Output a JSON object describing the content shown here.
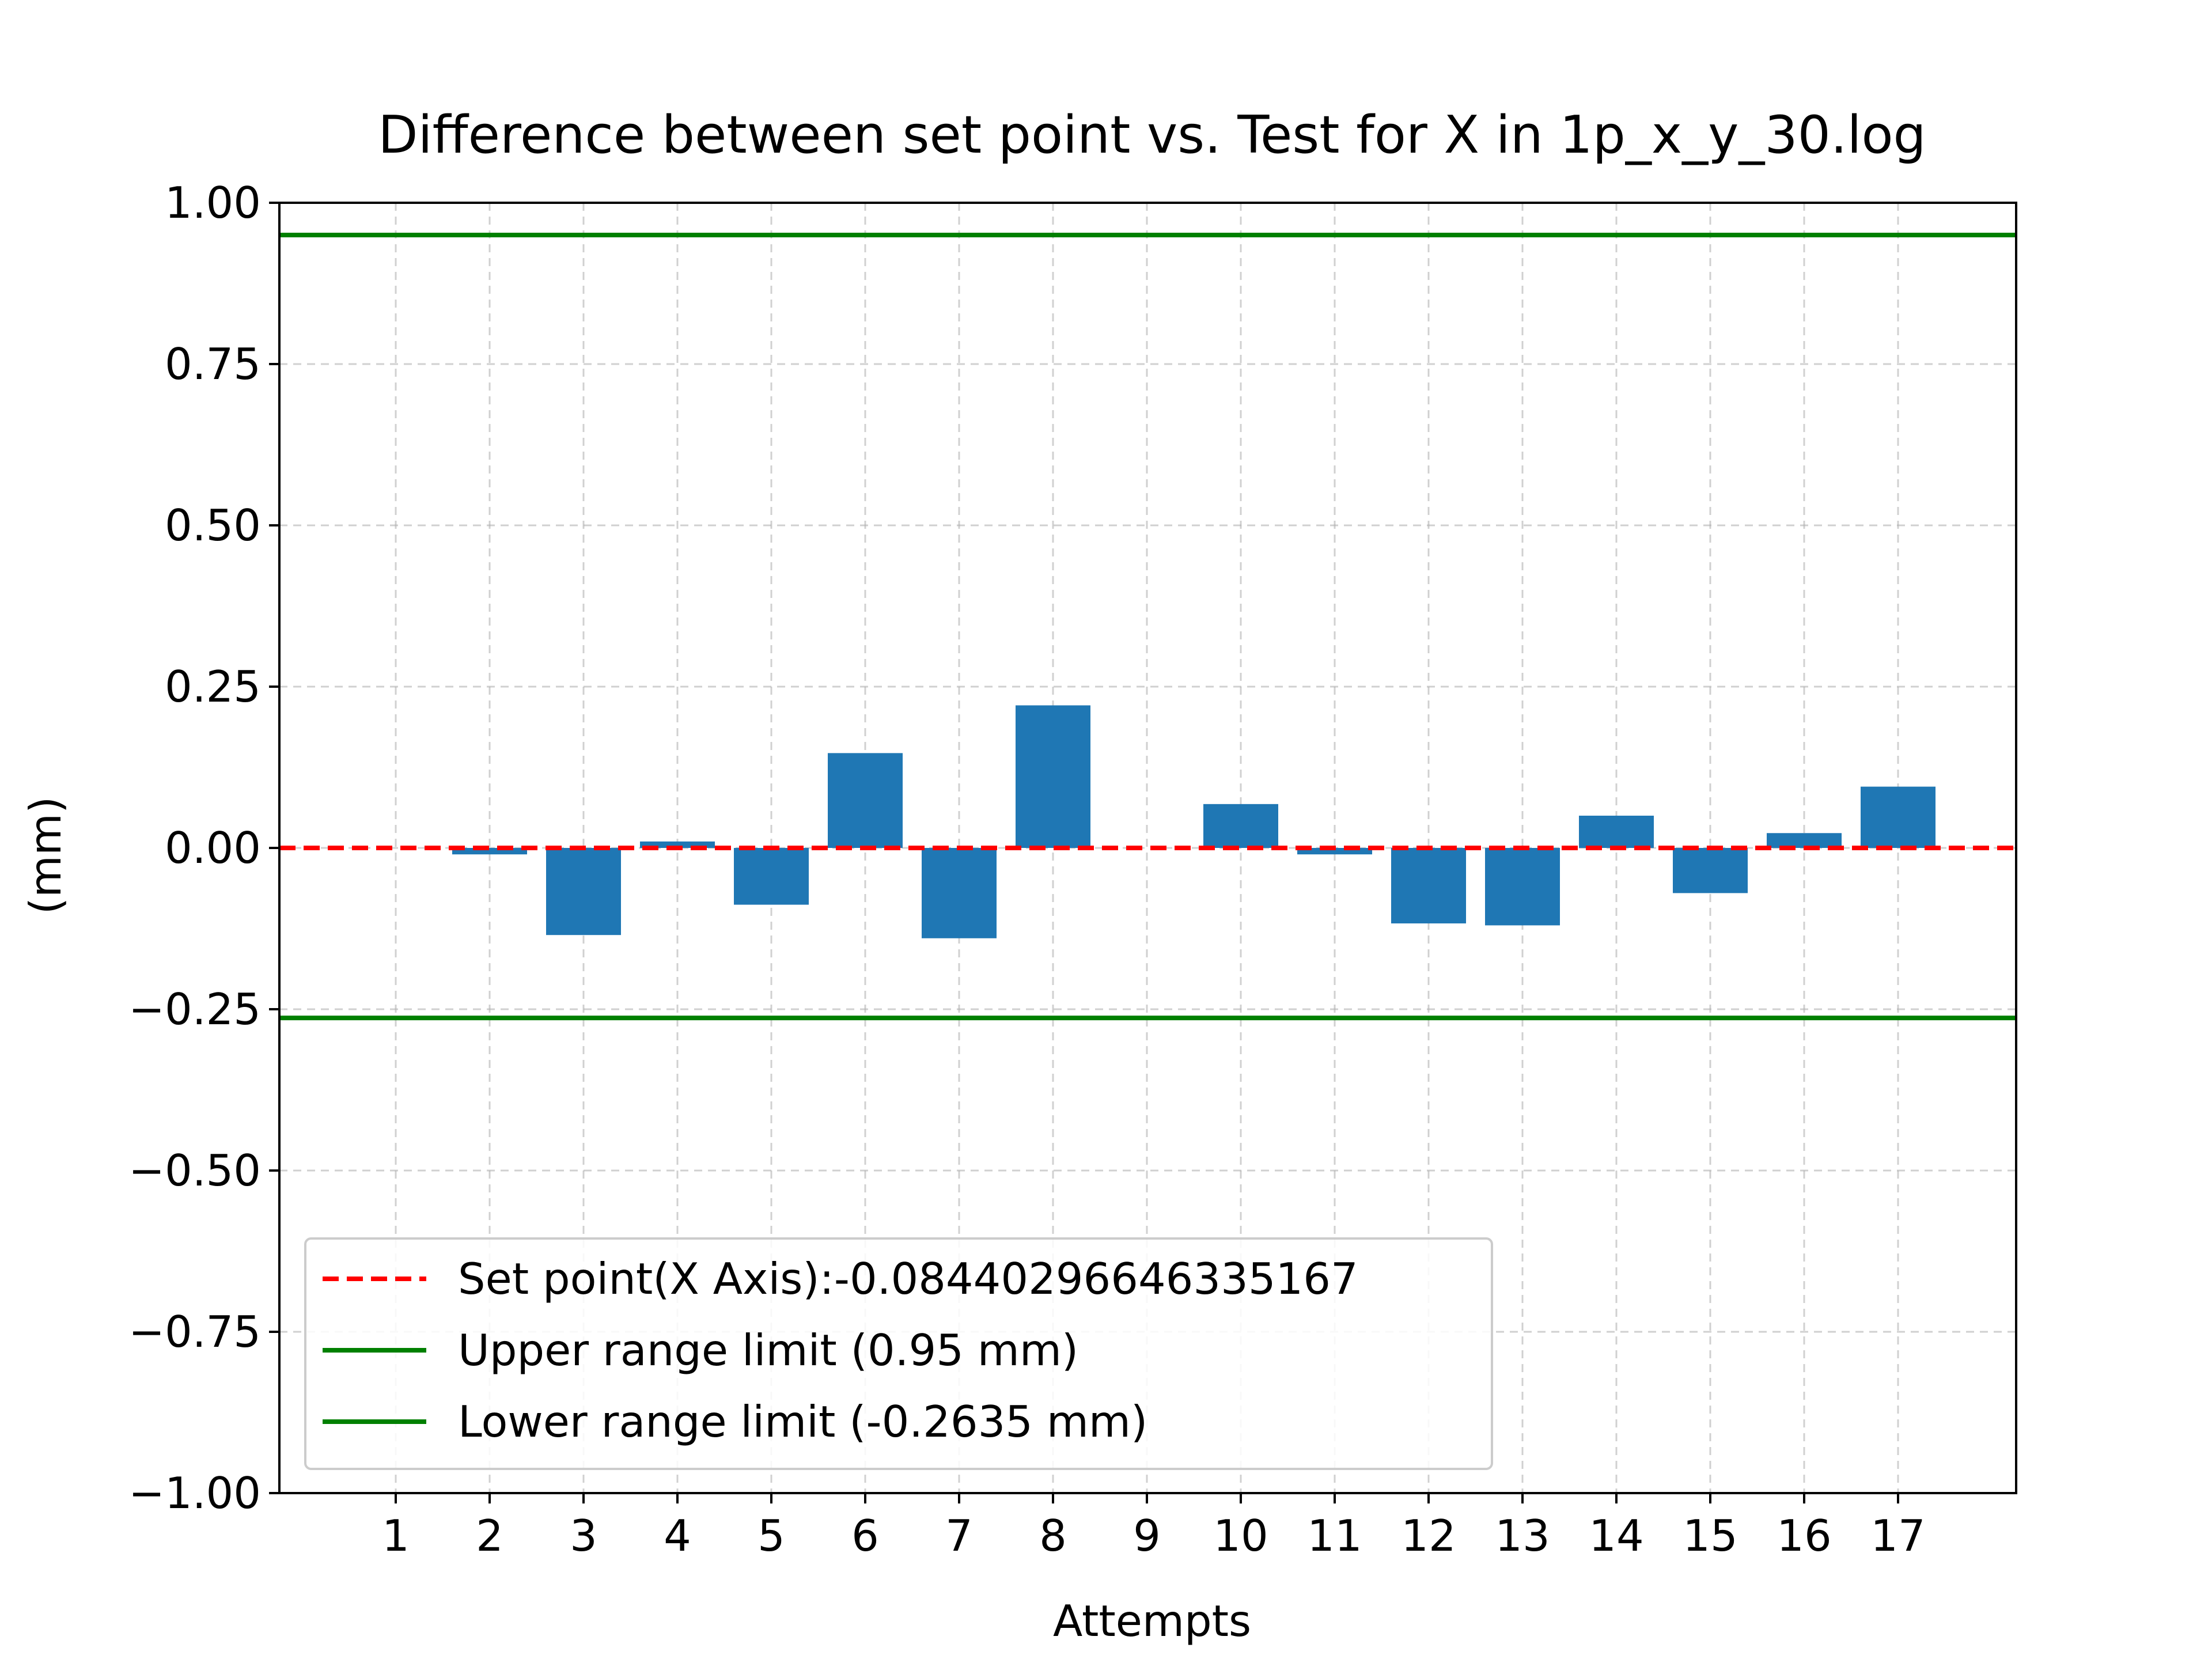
{
  "chart_data": {
    "type": "bar",
    "title": "Difference between set point vs. Test for X in 1p_x_y_30.log",
    "xlabel": "Attempts",
    "ylabel": "(mm)",
    "ylim": [
      -1.0,
      1.0
    ],
    "yticks": [
      "1.00",
      "0.75",
      "0.50",
      "0.25",
      "0.00",
      "−0.25",
      "−0.50",
      "−0.75",
      "−1.00"
    ],
    "ytick_values": [
      1.0,
      0.75,
      0.5,
      0.25,
      0.0,
      -0.25,
      -0.5,
      -0.75,
      -1.0
    ],
    "grid": true,
    "categories": [
      "1",
      "2",
      "3",
      "4",
      "5",
      "6",
      "7",
      "8",
      "9",
      "10",
      "11",
      "12",
      "13",
      "14",
      "15",
      "16",
      "17"
    ],
    "values": [
      0.0,
      -0.01,
      -0.135,
      0.01,
      -0.088,
      0.147,
      -0.14,
      0.221,
      0.0,
      0.068,
      -0.01,
      -0.117,
      -0.12,
      0.05,
      -0.07,
      0.023,
      0.095
    ],
    "bar_color": "#1f77b4",
    "set_point": {
      "value": 0.0,
      "color": "#ff0000",
      "style": "dashed"
    },
    "limits": [
      {
        "value": 0.95,
        "color": "#008000"
      },
      {
        "value": -0.2635,
        "color": "#008000"
      }
    ],
    "legend": {
      "placement": "lower-left",
      "entries": [
        {
          "label": "Set point(X Axis):-0.08440296646335167",
          "color": "#ff0000",
          "style": "dashed"
        },
        {
          "label": "Upper range limit (0.95 mm)",
          "color": "#008000",
          "style": "solid"
        },
        {
          "label": "Lower range limit (-0.2635 mm)",
          "color": "#008000",
          "style": "solid"
        }
      ]
    }
  }
}
